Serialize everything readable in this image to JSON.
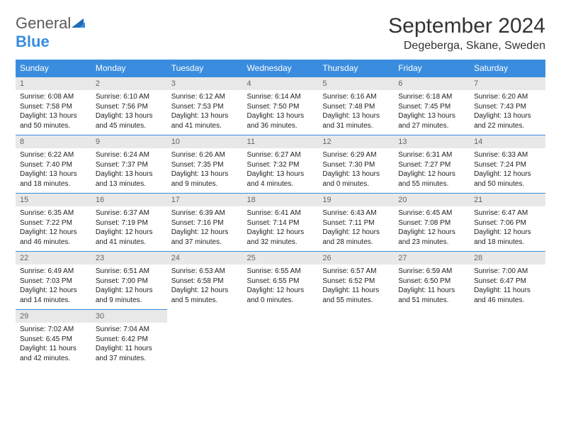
{
  "header": {
    "logo_word1": "General",
    "logo_word2": "Blue",
    "month_title": "September 2024",
    "location": "Degeberga, Skane, Sweden"
  },
  "colors": {
    "brand_blue": "#3a8dde",
    "header_bg": "#3a8dde",
    "header_text": "#ffffff",
    "daynum_bg": "#e8e8e8",
    "daynum_text": "#666666",
    "body_text": "#222222",
    "logo_grey": "#5a5a5a"
  },
  "weekdays": [
    "Sunday",
    "Monday",
    "Tuesday",
    "Wednesday",
    "Thursday",
    "Friday",
    "Saturday"
  ],
  "weeks": [
    [
      {
        "n": "1",
        "sr": "6:08 AM",
        "ss": "7:58 PM",
        "dl": "13 hours and 50 minutes."
      },
      {
        "n": "2",
        "sr": "6:10 AM",
        "ss": "7:56 PM",
        "dl": "13 hours and 45 minutes."
      },
      {
        "n": "3",
        "sr": "6:12 AM",
        "ss": "7:53 PM",
        "dl": "13 hours and 41 minutes."
      },
      {
        "n": "4",
        "sr": "6:14 AM",
        "ss": "7:50 PM",
        "dl": "13 hours and 36 minutes."
      },
      {
        "n": "5",
        "sr": "6:16 AM",
        "ss": "7:48 PM",
        "dl": "13 hours and 31 minutes."
      },
      {
        "n": "6",
        "sr": "6:18 AM",
        "ss": "7:45 PM",
        "dl": "13 hours and 27 minutes."
      },
      {
        "n": "7",
        "sr": "6:20 AM",
        "ss": "7:43 PM",
        "dl": "13 hours and 22 minutes."
      }
    ],
    [
      {
        "n": "8",
        "sr": "6:22 AM",
        "ss": "7:40 PM",
        "dl": "13 hours and 18 minutes."
      },
      {
        "n": "9",
        "sr": "6:24 AM",
        "ss": "7:37 PM",
        "dl": "13 hours and 13 minutes."
      },
      {
        "n": "10",
        "sr": "6:26 AM",
        "ss": "7:35 PM",
        "dl": "13 hours and 9 minutes."
      },
      {
        "n": "11",
        "sr": "6:27 AM",
        "ss": "7:32 PM",
        "dl": "13 hours and 4 minutes."
      },
      {
        "n": "12",
        "sr": "6:29 AM",
        "ss": "7:30 PM",
        "dl": "13 hours and 0 minutes."
      },
      {
        "n": "13",
        "sr": "6:31 AM",
        "ss": "7:27 PM",
        "dl": "12 hours and 55 minutes."
      },
      {
        "n": "14",
        "sr": "6:33 AM",
        "ss": "7:24 PM",
        "dl": "12 hours and 50 minutes."
      }
    ],
    [
      {
        "n": "15",
        "sr": "6:35 AM",
        "ss": "7:22 PM",
        "dl": "12 hours and 46 minutes."
      },
      {
        "n": "16",
        "sr": "6:37 AM",
        "ss": "7:19 PM",
        "dl": "12 hours and 41 minutes."
      },
      {
        "n": "17",
        "sr": "6:39 AM",
        "ss": "7:16 PM",
        "dl": "12 hours and 37 minutes."
      },
      {
        "n": "18",
        "sr": "6:41 AM",
        "ss": "7:14 PM",
        "dl": "12 hours and 32 minutes."
      },
      {
        "n": "19",
        "sr": "6:43 AM",
        "ss": "7:11 PM",
        "dl": "12 hours and 28 minutes."
      },
      {
        "n": "20",
        "sr": "6:45 AM",
        "ss": "7:08 PM",
        "dl": "12 hours and 23 minutes."
      },
      {
        "n": "21",
        "sr": "6:47 AM",
        "ss": "7:06 PM",
        "dl": "12 hours and 18 minutes."
      }
    ],
    [
      {
        "n": "22",
        "sr": "6:49 AM",
        "ss": "7:03 PM",
        "dl": "12 hours and 14 minutes."
      },
      {
        "n": "23",
        "sr": "6:51 AM",
        "ss": "7:00 PM",
        "dl": "12 hours and 9 minutes."
      },
      {
        "n": "24",
        "sr": "6:53 AM",
        "ss": "6:58 PM",
        "dl": "12 hours and 5 minutes."
      },
      {
        "n": "25",
        "sr": "6:55 AM",
        "ss": "6:55 PM",
        "dl": "12 hours and 0 minutes."
      },
      {
        "n": "26",
        "sr": "6:57 AM",
        "ss": "6:52 PM",
        "dl": "11 hours and 55 minutes."
      },
      {
        "n": "27",
        "sr": "6:59 AM",
        "ss": "6:50 PM",
        "dl": "11 hours and 51 minutes."
      },
      {
        "n": "28",
        "sr": "7:00 AM",
        "ss": "6:47 PM",
        "dl": "11 hours and 46 minutes."
      }
    ],
    [
      {
        "n": "29",
        "sr": "7:02 AM",
        "ss": "6:45 PM",
        "dl": "11 hours and 42 minutes."
      },
      {
        "n": "30",
        "sr": "7:04 AM",
        "ss": "6:42 PM",
        "dl": "11 hours and 37 minutes."
      },
      null,
      null,
      null,
      null,
      null
    ]
  ],
  "labels": {
    "sunrise": "Sunrise:",
    "sunset": "Sunset:",
    "daylight": "Daylight:"
  }
}
